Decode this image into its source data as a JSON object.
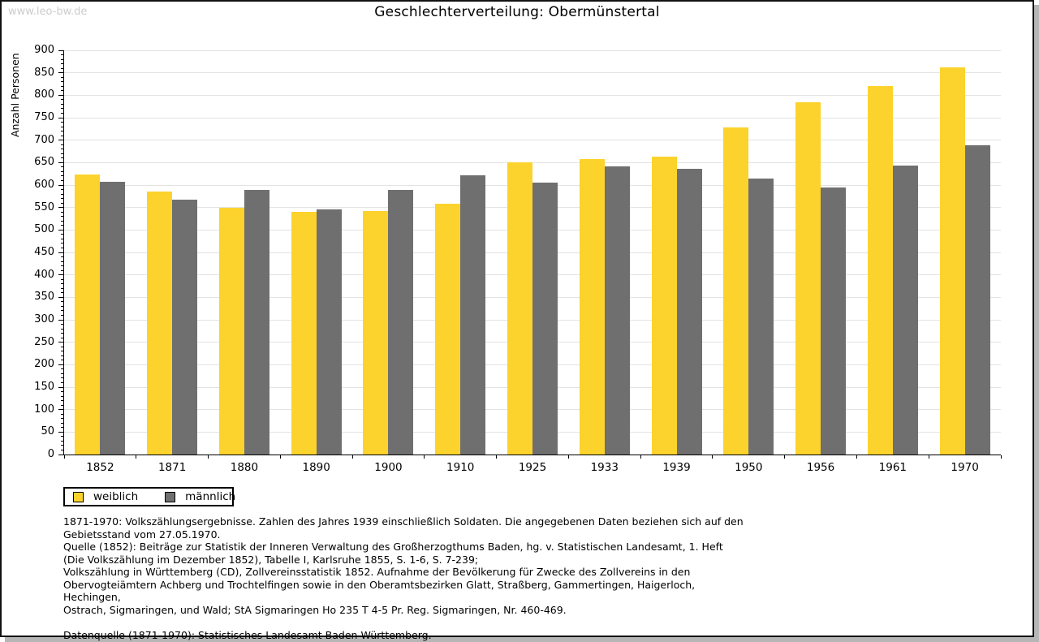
{
  "watermark": "www.leo-bw.de",
  "colors": {
    "weiblich": "#fcd32d",
    "maennlich": "#6f6f6f",
    "gridline": "#e3e3e3",
    "axis": "#000000",
    "watermark": "#cccccc",
    "frame_shadow": "#b6b6b6"
  },
  "chart_data": {
    "type": "bar",
    "title": "Geschlechterverteilung: Obermünstertal",
    "xlabel": "",
    "ylabel": "Anzahl Personen",
    "ylim": [
      0,
      900
    ],
    "ytick_step": 50,
    "ytick_minor_step": 10,
    "grid": true,
    "legend_position": "bottom-left",
    "categories": [
      "1852",
      "1871",
      "1880",
      "1890",
      "1900",
      "1910",
      "1925",
      "1933",
      "1939",
      "1950",
      "1956",
      "1961",
      "1970"
    ],
    "series": [
      {
        "name": "weiblich",
        "color": "#fcd32d",
        "values": [
          623,
          585,
          549,
          540,
          543,
          558,
          650,
          657,
          664,
          729,
          784,
          821,
          862
        ]
      },
      {
        "name": "männlich",
        "color": "#6f6f6f",
        "values": [
          608,
          567,
          590,
          546,
          589,
          622,
          606,
          641,
          636,
          614,
          594,
          643,
          688
        ]
      }
    ]
  },
  "footer": {
    "lines": [
      "1871-1970: Volkszählungsergebnisse. Zahlen des Jahres 1939 einschließlich Soldaten. Die angegebenen Daten beziehen sich auf den",
      "Gebietsstand vom 27.05.1970.",
      "Quelle (1852): Beiträge zur Statistik der Inneren Verwaltung des Großherzogthums Baden, hg. v. Statistischen Landesamt, 1. Heft",
      "(Die Volkszählung im Dezember 1852), Tabelle I, Karlsruhe 1855, S. 1-6, S. 7-239;",
      "Volkszählung in Württemberg (CD), Zollvereinsstatistik 1852. Aufnahme der Bevölkerung für Zwecke des Zollvereins in den",
      "Obervogteiämtern Achberg und Trochtelfingen sowie in den Oberamtsbezirken Glatt, Straßberg, Gammertingen, Haigerloch, Hechingen,",
      "Ostrach, Sigmaringen, und Wald; StA Sigmaringen Ho 235 T 4-5 Pr. Reg. Sigmaringen, Nr. 460-469.",
      "",
      "Datenquelle (1871-1970): Statistisches Landesamt Baden-Württemberg."
    ]
  }
}
